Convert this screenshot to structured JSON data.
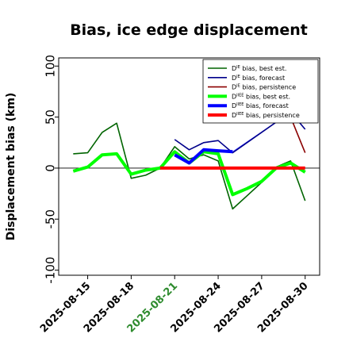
{
  "chart_data": {
    "type": "line",
    "title": "Bias, ice edge displacement",
    "xlabel": "",
    "ylabel": "Displacement bias (km)",
    "ylim": [
      -105,
      108
    ],
    "xlim": [
      "2025-08-13",
      "2025-08-31"
    ],
    "yticks": [
      -100,
      -50,
      0,
      50,
      100
    ],
    "xticks": [
      "2025-08-15",
      "2025-08-18",
      "2025-08-21",
      "2025-08-24",
      "2025-08-27",
      "2025-08-30"
    ],
    "highlight_xtick": "2025-08-21",
    "highlight_color": "#2e8b2e",
    "zero_line": true,
    "legend_position": "top-right",
    "series": [
      {
        "name": "D^IE bias, best est.",
        "label_base": "D",
        "label_sup": "IE",
        "label_rest": " bias, best est.",
        "color": "#006400",
        "width": 1.6,
        "x": [
          "2025-08-14",
          "2025-08-15",
          "2025-08-16",
          "2025-08-17",
          "2025-08-18",
          "2025-08-19",
          "2025-08-20",
          "2025-08-21",
          "2025-08-22",
          "2025-08-23",
          "2025-08-24",
          "2025-08-25",
          "2025-08-26",
          "2025-08-27",
          "2025-08-28",
          "2025-08-29",
          "2025-08-30"
        ],
        "y": [
          14,
          15,
          35,
          44,
          -10,
          -7,
          0,
          21,
          9,
          13,
          7,
          -40,
          -27,
          -14,
          1,
          7,
          -32
        ]
      },
      {
        "name": "D^IE bias, forecast",
        "label_base": "D",
        "label_sup": "IE",
        "label_rest": " bias, forecast",
        "color": "#00008b",
        "width": 1.6,
        "x": [
          "2025-08-21",
          "2025-08-22",
          "2025-08-23",
          "2025-08-24",
          "2025-08-25",
          "2025-08-29",
          "2025-08-30"
        ],
        "y": [
          28,
          18,
          25,
          27,
          15,
          55,
          38
        ]
      },
      {
        "name": "D^IE bias, persistence",
        "label_base": "D",
        "label_sup": "IE",
        "label_rest": " bias, persistence",
        "color": "#8b0000",
        "width": 1.6,
        "x": [
          "2025-08-29",
          "2025-08-30"
        ],
        "y": [
          50,
          15
        ]
      },
      {
        "name": "D^IIEE bias, best est.",
        "label_base": "D",
        "label_sup": "IIEE",
        "label_rest": " bias, best est.",
        "color": "#00ff00",
        "width": 4,
        "x": [
          "2025-08-14",
          "2025-08-15",
          "2025-08-16",
          "2025-08-17",
          "2025-08-18",
          "2025-08-19",
          "2025-08-20",
          "2025-08-21",
          "2025-08-22",
          "2025-08-23",
          "2025-08-24",
          "2025-08-25",
          "2025-08-26",
          "2025-08-27",
          "2025-08-28",
          "2025-08-29",
          "2025-08-30"
        ],
        "y": [
          -3,
          1,
          13,
          14,
          -6,
          -2,
          0,
          16,
          5,
          16,
          14,
          -26,
          -20,
          -13,
          0,
          5,
          -4
        ]
      },
      {
        "name": "D^IIEE bias, forecast",
        "label_base": "D",
        "label_sup": "IIEE",
        "label_rest": " bias, forecast",
        "color": "#0000ff",
        "width": 4,
        "x": [
          "2025-08-21",
          "2025-08-22",
          "2025-08-23",
          "2025-08-24",
          "2025-08-25"
        ],
        "y": [
          13,
          5,
          18,
          17,
          16
        ]
      },
      {
        "name": "D^IIEE bias, persistence",
        "label_base": "D",
        "label_sup": "IIEE",
        "label_rest": " bias, persistence",
        "color": "#ff0000",
        "width": 4,
        "x": [
          "2025-08-20",
          "2025-08-21",
          "2025-08-22",
          "2025-08-23",
          "2025-08-24",
          "2025-08-25",
          "2025-08-27",
          "2025-08-28",
          "2025-08-29",
          "2025-08-30"
        ],
        "y": [
          0,
          0,
          0,
          0,
          0,
          0,
          0,
          0,
          0,
          0
        ]
      }
    ],
    "thin_connectors": [
      {
        "color": "#ff0000",
        "x": [
          "2025-08-25",
          "2025-08-27"
        ],
        "y": [
          0,
          0
        ]
      },
      {
        "color": "#00ff00",
        "x": [
          "2025-08-25",
          "2025-08-27"
        ],
        "y": [
          -26,
          -13
        ]
      },
      {
        "color": "#0000ff",
        "x": [
          "2025-08-25",
          "2025-08-29"
        ],
        "y": [
          16,
          55
        ]
      },
      {
        "color": "#00008b",
        "x": [
          "2025-08-25",
          "2025-08-29"
        ],
        "y": [
          15,
          55
        ]
      }
    ]
  }
}
